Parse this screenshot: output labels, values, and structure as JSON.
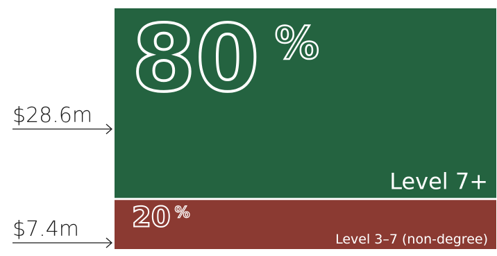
{
  "chart_data": {
    "type": "bar",
    "orientation": "stacked-single",
    "categories": [
      "Level 7+",
      "Level 3–7 (non-degree)"
    ],
    "values": [
      28.6,
      7.4
    ],
    "amount_labels": [
      "$28.6m",
      "$7.4m"
    ],
    "percent_labels": [
      "80",
      "20"
    ],
    "percent_sign": "%",
    "colors": [
      "#246340",
      "#8b3a32"
    ]
  }
}
